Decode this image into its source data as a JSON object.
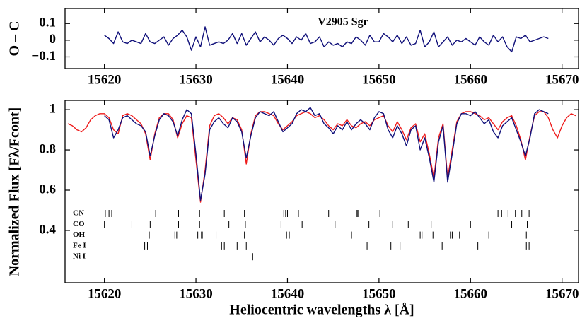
{
  "chart_data": [
    {
      "type": "line",
      "ylabel": "O – C",
      "annotation": "V2905 Sgr",
      "xlim": [
        15615.7,
        15671.8
      ],
      "ylim": [
        -0.17,
        0.19
      ],
      "xticks": [
        15620,
        15630,
        15640,
        15650,
        15660,
        15670
      ],
      "yticks": [
        0.1,
        0,
        {
          "value": -0.1,
          "label": "−0.1"
        }
      ],
      "x": [
        15616.0,
        15616.5,
        15617.0,
        15617.5,
        15618.0,
        15618.5,
        15619.0,
        15619.5,
        15620.0,
        15620.5,
        15621.0,
        15621.5,
        15622.0,
        15622.5,
        15623.0,
        15623.5,
        15624.0,
        15624.5,
        15625.0,
        15625.5,
        15626.0,
        15626.5,
        15627.0,
        15627.5,
        15628.0,
        15628.5,
        15629.0,
        15629.5,
        15630.0,
        15630.5,
        15631.0,
        15631.5,
        15632.0,
        15632.5,
        15633.0,
        15633.5,
        15634.0,
        15634.5,
        15635.0,
        15635.5,
        15636.0,
        15636.5,
        15637.0,
        15637.5,
        15638.0,
        15638.5,
        15639.0,
        15639.5,
        15640.0,
        15640.5,
        15641.0,
        15641.5,
        15642.0,
        15642.5,
        15643.0,
        15643.5,
        15644.0,
        15644.5,
        15645.0,
        15645.5,
        15646.0,
        15646.5,
        15647.0,
        15647.5,
        15648.0,
        15648.5,
        15649.0,
        15649.5,
        15650.0,
        15650.5,
        15651.0,
        15651.5,
        15652.0,
        15652.5,
        15653.0,
        15653.5,
        15654.0,
        15654.5,
        15655.0,
        15655.5,
        15656.0,
        15656.5,
        15657.0,
        15657.5,
        15658.0,
        15658.5,
        15659.0,
        15659.5,
        15660.0,
        15660.5,
        15661.0,
        15661.5,
        15662.0,
        15662.5,
        15663.0,
        15663.5,
        15664.0,
        15664.5,
        15665.0,
        15665.5,
        15666.0,
        15666.5,
        15667.0,
        15667.5,
        15668.0,
        15668.5,
        15669.0,
        15669.5,
        15670.0,
        15670.5,
        15671.0,
        15671.5
      ],
      "series": [
        {
          "color": "#10107a",
          "values": [
            null,
            null,
            null,
            null,
            null,
            null,
            null,
            null,
            0.03,
            0.01,
            -0.02,
            0.05,
            -0.01,
            -0.02,
            0.0,
            -0.01,
            -0.02,
            0.04,
            -0.01,
            -0.02,
            0.0,
            0.02,
            -0.03,
            0.01,
            0.03,
            0.06,
            0.02,
            -0.06,
            0.02,
            -0.04,
            0.08,
            -0.03,
            -0.02,
            -0.01,
            -0.02,
            0.0,
            0.04,
            -0.02,
            0.04,
            -0.03,
            0.01,
            0.05,
            -0.01,
            0.02,
            0.0,
            -0.03,
            0.01,
            0.03,
            0.01,
            -0.02,
            0.02,
            0.0,
            0.04,
            -0.02,
            -0.01,
            0.02,
            -0.04,
            -0.01,
            -0.03,
            -0.02,
            -0.04,
            -0.01,
            -0.02,
            0.02,
            0.0,
            -0.03,
            0.03,
            -0.01,
            -0.01,
            0.04,
            0.02,
            -0.01,
            0.03,
            -0.02,
            0.02,
            -0.03,
            -0.02,
            0.06,
            -0.04,
            -0.01,
            0.05,
            -0.04,
            -0.01,
            0.02,
            -0.03,
            0.0,
            -0.01,
            0.01,
            -0.01,
            -0.03,
            0.02,
            -0.01,
            -0.03,
            0.03,
            -0.01,
            0.02,
            -0.04,
            -0.07,
            0.02,
            0.01,
            0.03,
            -0.01,
            0.0,
            0.01,
            0.02,
            0.01,
            null,
            null,
            null,
            null,
            null,
            null
          ]
        }
      ]
    },
    {
      "type": "line",
      "ylabel": "Normalized Flux [Fλ/Fcont]",
      "xlabel": "Heliocentric wavelengths λ [Å]",
      "xlim": [
        15615.7,
        15671.8
      ],
      "ylim": [
        0.14,
        1.046
      ],
      "xticks": [
        15620,
        15630,
        15640,
        15650,
        15660,
        15670
      ],
      "yticks": [
        1,
        0.8,
        0.6,
        0.4
      ],
      "x": [
        15616.0,
        15616.5,
        15617.0,
        15617.5,
        15618.0,
        15618.5,
        15619.0,
        15619.5,
        15620.0,
        15620.5,
        15621.0,
        15621.5,
        15622.0,
        15622.5,
        15623.0,
        15623.5,
        15624.0,
        15624.5,
        15625.0,
        15625.5,
        15626.0,
        15626.5,
        15627.0,
        15627.5,
        15628.0,
        15628.5,
        15629.0,
        15629.5,
        15630.0,
        15630.5,
        15631.0,
        15631.5,
        15632.0,
        15632.5,
        15633.0,
        15633.5,
        15634.0,
        15634.5,
        15635.0,
        15635.5,
        15636.0,
        15636.5,
        15637.0,
        15637.5,
        15638.0,
        15638.5,
        15639.0,
        15639.5,
        15640.0,
        15640.5,
        15641.0,
        15641.5,
        15642.0,
        15642.5,
        15643.0,
        15643.5,
        15644.0,
        15644.5,
        15645.0,
        15645.5,
        15646.0,
        15646.5,
        15647.0,
        15647.5,
        15648.0,
        15648.5,
        15649.0,
        15649.5,
        15650.0,
        15650.5,
        15651.0,
        15651.5,
        15652.0,
        15652.5,
        15653.0,
        15653.5,
        15654.0,
        15654.5,
        15655.0,
        15655.5,
        15656.0,
        15656.5,
        15657.0,
        15657.5,
        15658.0,
        15658.5,
        15659.0,
        15659.5,
        15660.0,
        15660.5,
        15661.0,
        15661.5,
        15662.0,
        15662.5,
        15663.0,
        15663.5,
        15664.0,
        15664.5,
        15665.0,
        15665.5,
        15666.0,
        15666.5,
        15667.0,
        15667.5,
        15668.0,
        15668.5,
        15669.0,
        15669.5,
        15670.0,
        15670.5,
        15671.0,
        15671.5
      ],
      "series": [
        {
          "color": "#ee1c1c",
          "values": [
            0.93,
            0.92,
            0.9,
            0.89,
            0.91,
            0.95,
            0.97,
            0.98,
            0.98,
            0.96,
            0.9,
            0.88,
            0.97,
            0.98,
            0.97,
            0.95,
            0.93,
            0.88,
            0.75,
            0.88,
            0.96,
            0.98,
            0.98,
            0.95,
            0.86,
            0.93,
            0.97,
            0.96,
            0.75,
            0.54,
            0.7,
            0.92,
            0.97,
            0.98,
            0.96,
            0.93,
            0.96,
            0.95,
            0.9,
            0.73,
            0.88,
            0.97,
            0.99,
            0.99,
            0.98,
            0.97,
            0.93,
            0.9,
            0.92,
            0.94,
            0.97,
            0.98,
            0.99,
            0.98,
            0.96,
            0.97,
            0.95,
            0.92,
            0.9,
            0.93,
            0.92,
            0.95,
            0.92,
            0.91,
            0.93,
            0.94,
            0.92,
            0.95,
            0.96,
            0.97,
            0.92,
            0.89,
            0.94,
            0.9,
            0.85,
            0.91,
            0.93,
            0.84,
            0.88,
            0.78,
            0.66,
            0.86,
            0.93,
            0.66,
            0.8,
            0.94,
            0.98,
            0.99,
            0.99,
            0.98,
            0.97,
            0.95,
            0.96,
            0.93,
            0.9,
            0.94,
            0.96,
            0.97,
            0.92,
            0.85,
            0.75,
            0.87,
            0.97,
            0.99,
            0.99,
            0.96,
            0.9,
            0.86,
            0.92,
            0.96,
            0.98,
            0.97
          ]
        },
        {
          "color": "#10107a",
          "values": [
            null,
            null,
            null,
            null,
            null,
            null,
            null,
            null,
            0.97,
            0.95,
            0.86,
            0.9,
            0.96,
            0.97,
            0.95,
            0.93,
            0.92,
            0.89,
            0.77,
            0.87,
            0.95,
            0.98,
            0.97,
            0.94,
            0.87,
            0.95,
            1.0,
            0.98,
            0.78,
            0.55,
            0.68,
            0.9,
            0.94,
            0.96,
            0.93,
            0.91,
            0.96,
            0.94,
            0.89,
            0.76,
            0.87,
            0.96,
            0.99,
            0.98,
            0.97,
            0.99,
            0.94,
            0.89,
            0.91,
            0.93,
            0.98,
            1.0,
            0.99,
            1.01,
            0.97,
            0.98,
            0.93,
            0.91,
            0.88,
            0.92,
            0.9,
            0.94,
            0.9,
            0.93,
            0.95,
            0.93,
            0.9,
            0.96,
            0.99,
            0.98,
            0.9,
            0.86,
            0.92,
            0.88,
            0.82,
            0.9,
            0.92,
            0.8,
            0.86,
            0.76,
            0.64,
            0.84,
            0.92,
            0.64,
            0.78,
            0.93,
            0.98,
            0.98,
            0.97,
            0.99,
            0.96,
            0.93,
            0.95,
            0.89,
            0.86,
            0.92,
            0.94,
            0.96,
            0.9,
            0.84,
            0.77,
            0.86,
            0.98,
            1.0,
            0.99,
            0.98,
            null,
            null,
            null,
            null,
            null,
            null
          ]
        }
      ],
      "line_list": [
        {
          "name": "CN",
          "wavelengths": [
            15620.1,
            15620.5,
            15620.8,
            15625.6,
            15628.1,
            15630.4,
            15633.1,
            15635.3,
            15639.6,
            15639.8,
            15640.0,
            15641.2,
            15644.5,
            15647.6,
            15647.7,
            15650.1,
            15663.0,
            15663.4,
            15664.1,
            15664.9,
            15665.6,
            15666.4
          ]
        },
        {
          "name": "CO",
          "wavelengths": [
            15620.0,
            15623.0,
            15625.0,
            15628.1,
            15630.4,
            15633.6,
            15635.4,
            15639.3,
            15641.6,
            15645.2,
            15648.9,
            15651.5,
            15653.2,
            15655.7,
            15660.0,
            15664.5,
            15666.2
          ]
        },
        {
          "name": "OH",
          "wavelengths": [
            15624.9,
            15627.7,
            15627.9,
            15630.2,
            15630.6,
            15630.7,
            15632.2,
            15635.3,
            15639.9,
            15640.2,
            15647.0,
            15654.5,
            15654.7,
            15655.9,
            15657.8,
            15658.0,
            15658.8,
            15662.0,
            15666.1
          ]
        },
        {
          "name": "Fe I",
          "wavelengths": [
            15624.4,
            15624.7,
            15632.8,
            15633.1,
            15634.5,
            15635.5,
            15648.7,
            15651.3,
            15652.3,
            15656.9,
            15660.8,
            15666.1,
            15666.4
          ]
        },
        {
          "name": "Ni I",
          "wavelengths": [
            15636.2
          ]
        }
      ]
    }
  ]
}
